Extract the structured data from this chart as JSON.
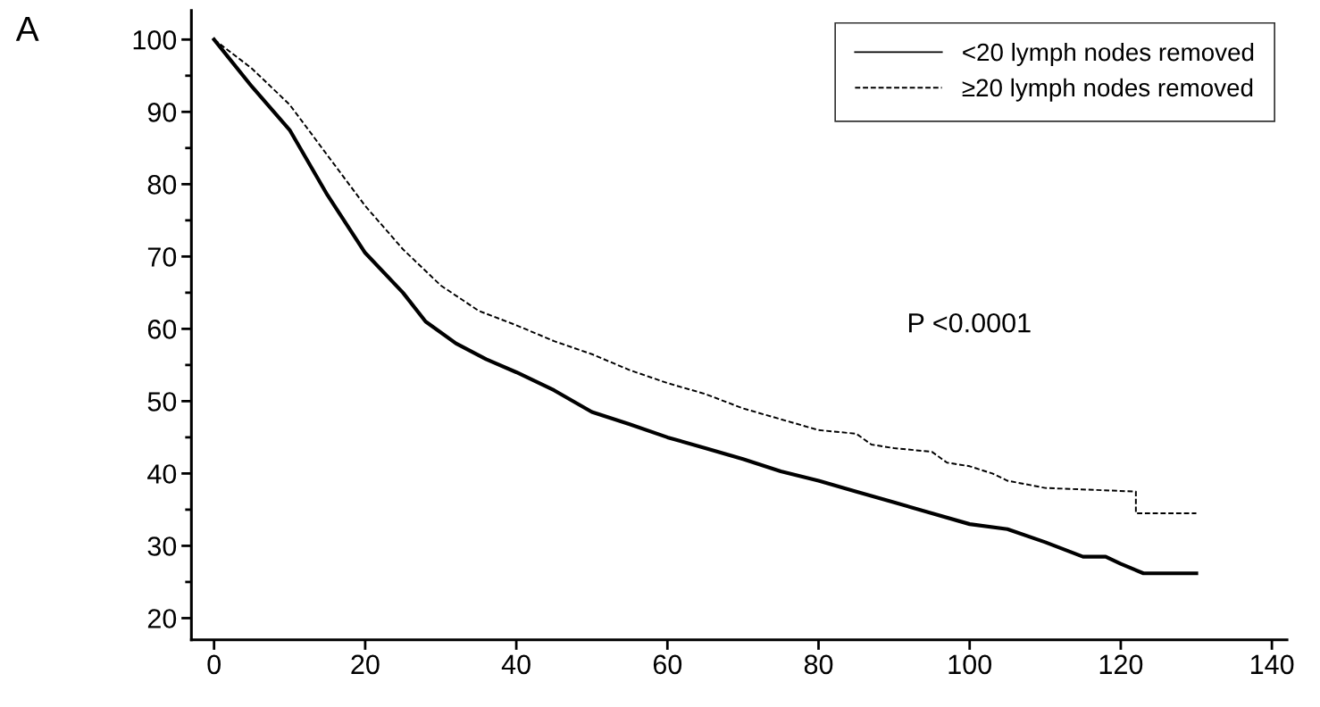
{
  "chart_data": {
    "type": "line",
    "annotations": [
      "A",
      "P <0.0001"
    ],
    "xlim": [
      -3,
      142
    ],
    "xticks": [
      0,
      20,
      40,
      60,
      80,
      100,
      120,
      140
    ],
    "ylim": [
      17,
      104
    ],
    "yticks": [
      20,
      {
        "value": 25,
        "label": null
      },
      30,
      {
        "value": 35,
        "label": null
      },
      40,
      {
        "value": 45,
        "label": null
      },
      50,
      {
        "value": 55,
        "label": null
      },
      60,
      {
        "value": 65,
        "label": null
      },
      70,
      {
        "value": 75,
        "label": null
      },
      80,
      {
        "value": 85,
        "label": null
      },
      90,
      {
        "value": 95,
        "label": null
      },
      100
    ],
    "grid": false,
    "legend": "top right",
    "marker": "none",
    "series": [
      {
        "name": "<20 lymph nodes removed",
        "color": "#000000",
        "line_style": "solid",
        "x": [
          0,
          5,
          10,
          15,
          20,
          25,
          28,
          32,
          36,
          40,
          45,
          50,
          55,
          60,
          65,
          70,
          75,
          80,
          85,
          90,
          95,
          100,
          105,
          110,
          115,
          118,
          120,
          123,
          130
        ],
        "values": [
          100,
          93.5,
          87.5,
          78.5,
          70.5,
          65,
          61,
          58,
          55.8,
          54,
          51.5,
          48.5,
          46.8,
          45,
          43.5,
          42,
          40.3,
          39,
          37.5,
          36,
          34.5,
          33,
          32.3,
          30.5,
          28.5,
          28.5,
          27.5,
          26.2,
          26.2
        ]
      },
      {
        "name": "≥20 lymph nodes removed",
        "color": "#000000",
        "line_style": "dashed",
        "x": [
          0,
          5,
          10,
          15,
          20,
          25,
          30,
          35,
          40,
          45,
          50,
          55,
          60,
          65,
          70,
          75,
          80,
          85,
          87,
          90,
          95,
          97,
          100,
          103,
          105,
          110,
          122,
          122,
          130
        ],
        "values": [
          100,
          96,
          91,
          84,
          77,
          71,
          66,
          62.5,
          60.5,
          58.3,
          56.5,
          54.3,
          52.5,
          51,
          49,
          47.5,
          46,
          45.5,
          44,
          43.5,
          43,
          41.5,
          41,
          40,
          39,
          38,
          37.5,
          34.5,
          34.5
        ]
      }
    ]
  }
}
